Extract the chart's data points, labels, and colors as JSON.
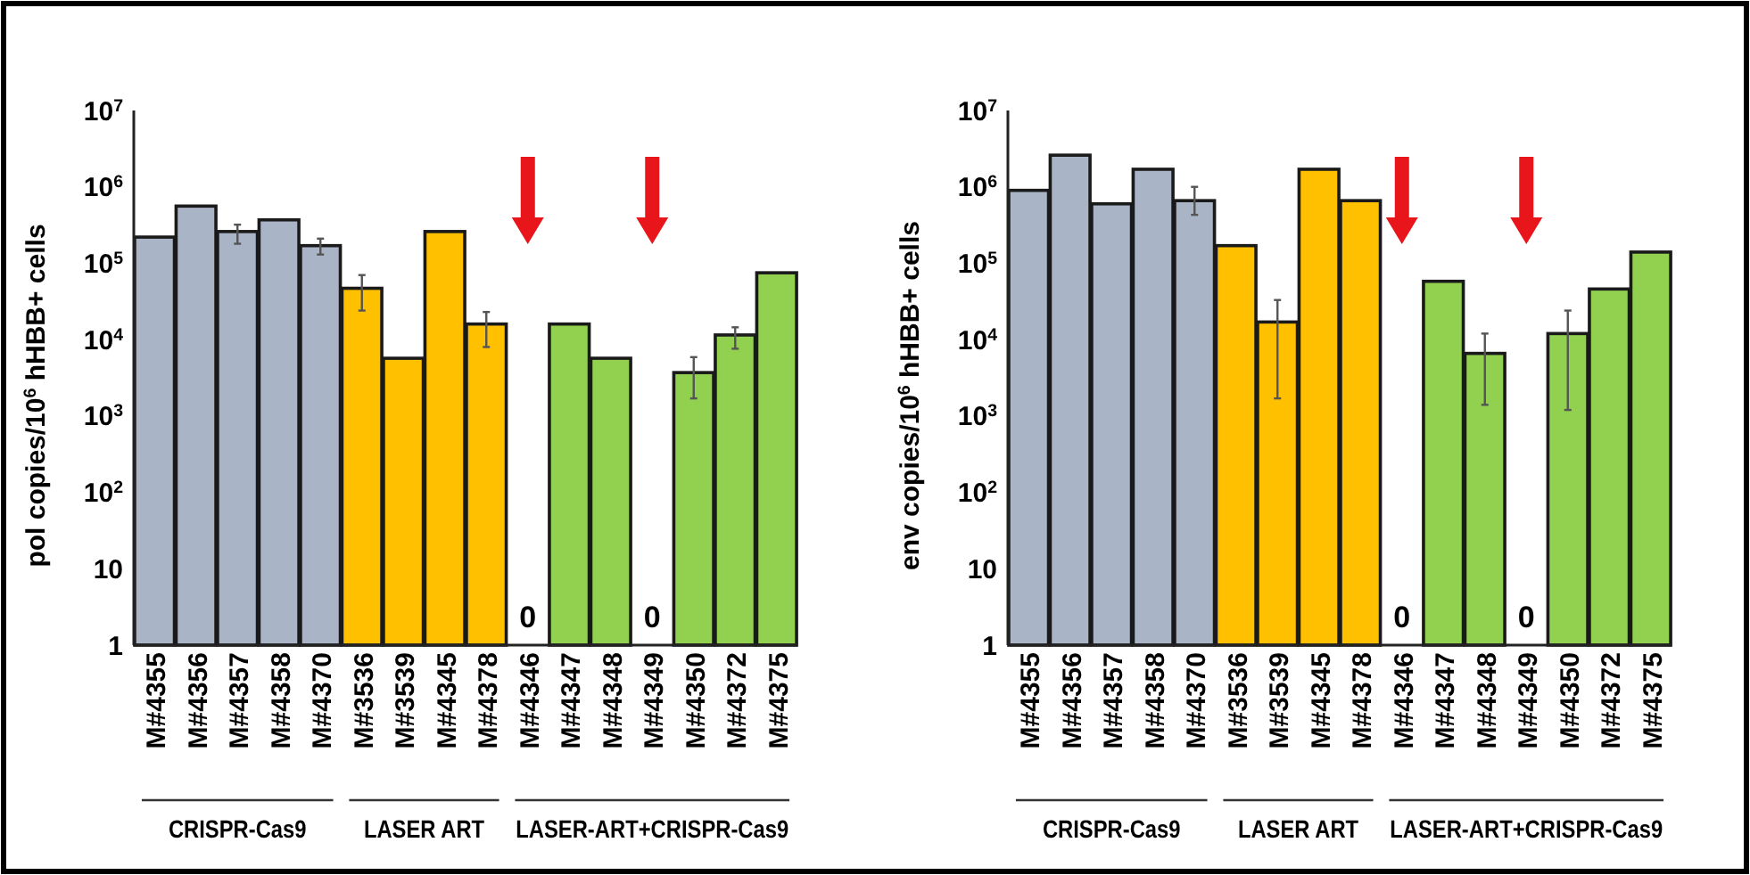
{
  "chart_data": [
    {
      "type": "bar",
      "ylabel": "pol copies/10$^{6}$ hHBB+ cells",
      "log": "y",
      "categories": [
        "M#4355",
        "M#4356",
        "M#4357",
        "M#4358",
        "M#4370",
        "M#3536",
        "M#3539",
        "M#4345",
        "M#4378",
        "M#4346",
        "M#4347",
        "M#4348",
        "M#4349",
        "M#4350",
        "M#4372",
        "M#4375"
      ],
      "values": [
        220000,
        560000,
        260000,
        370000,
        170000,
        47000,
        5700,
        260000,
        16000,
        null,
        16000,
        5700,
        null,
        3700,
        11500,
        75000
      ],
      "errors": [
        null,
        null,
        [
          180000,
          320000
        ],
        null,
        [
          130000,
          210000
        ],
        [
          24000,
          70000
        ],
        null,
        null,
        [
          8000,
          23000
        ],
        null,
        null,
        null,
        null,
        [
          1700,
          5900
        ],
        [
          7600,
          14500
        ],
        null
      ],
      "colors": [
        "#a9b4c6",
        "#a9b4c6",
        "#a9b4c6",
        "#a9b4c6",
        "#a9b4c6",
        "#ffc000",
        "#ffc000",
        "#ffc000",
        "#ffc000",
        "#92d050",
        "#92d050",
        "#92d050",
        "#92d050",
        "#92d050",
        "#92d050",
        "#92d050"
      ],
      "ylim": [
        1,
        10000000
      ],
      "yticks": [
        {
          "value": 1,
          "label": "1"
        },
        {
          "value": 10,
          "label": "10"
        },
        {
          "value": 100,
          "label": "10$^{2}$"
        },
        {
          "value": 1000,
          "label": "10$^{3}$"
        },
        {
          "value": 10000,
          "label": "10$^{4}$"
        },
        {
          "value": 100000,
          "label": "10$^{5}$"
        },
        {
          "value": 1000000,
          "label": "10$^{6}$"
        },
        {
          "value": 10000000,
          "label": "10$^{7}$"
        }
      ],
      "annotations": [
        "CRISPR-Cas9",
        "LASER ART",
        "LASER-ART+CRISPR-Cas9",
        "0",
        "0"
      ]
    },
    {
      "type": "bar",
      "ylabel": "env copies/10$^{6}$ hHBB+ cells",
      "log": "y",
      "categories": [
        "M#4355",
        "M#4356",
        "M#4357",
        "M#4358",
        "M#4370",
        "M#3536",
        "M#3539",
        "M#4345",
        "M#4378",
        "M#4346",
        "M#4347",
        "M#4348",
        "M#4349",
        "M#4350",
        "M#4372",
        "M#4375"
      ],
      "values": [
        900000,
        2600000,
        600000,
        1700000,
        660000,
        170000,
        17000,
        1700000,
        660000,
        null,
        58000,
        6600,
        null,
        12000,
        46000,
        140000
      ],
      "errors": [
        null,
        null,
        null,
        null,
        [
          430000,
          1000000
        ],
        null,
        [
          1700,
          33000
        ],
        null,
        null,
        null,
        null,
        [
          1400,
          12000
        ],
        null,
        [
          1200,
          24000
        ],
        null,
        null
      ],
      "colors": [
        "#a9b4c6",
        "#a9b4c6",
        "#a9b4c6",
        "#a9b4c6",
        "#a9b4c6",
        "#ffc000",
        "#ffc000",
        "#ffc000",
        "#ffc000",
        "#92d050",
        "#92d050",
        "#92d050",
        "#92d050",
        "#92d050",
        "#92d050",
        "#92d050"
      ],
      "ylim": [
        1,
        10000000
      ],
      "yticks": [
        {
          "value": 1,
          "label": "1"
        },
        {
          "value": 10,
          "label": "10"
        },
        {
          "value": 100,
          "label": "10$^{2}$"
        },
        {
          "value": 1000,
          "label": "10$^{3}$"
        },
        {
          "value": 10000,
          "label": "10$^{4}$"
        },
        {
          "value": 100000,
          "label": "10$^{5}$"
        },
        {
          "value": 1000000,
          "label": "10$^{6}$"
        },
        {
          "value": 10000000,
          "label": "10$^{7}$"
        }
      ],
      "annotations": [
        "CRISPR-Cas9",
        "LASER ART",
        "LASER-ART+CRISPR-Cas9",
        "0",
        "0"
      ]
    }
  ]
}
